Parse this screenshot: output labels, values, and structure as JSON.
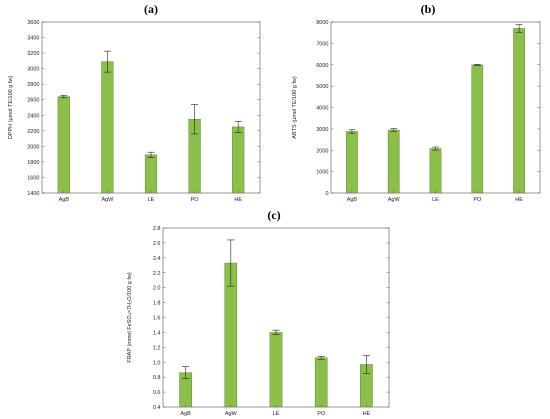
{
  "chart_data": [
    {
      "type": "bar",
      "panel_label": "(a)",
      "ylabel": "DPPH (µmol TE/100 g fw)",
      "categories": [
        "AgB",
        "AgW",
        "LE",
        "PO",
        "HE"
      ],
      "values": [
        2640,
        3090,
        1890,
        2350,
        2250
      ],
      "errors": [
        15,
        135,
        35,
        190,
        70
      ],
      "ylim": [
        1400,
        3600
      ],
      "yticks": [
        "1400",
        "1600",
        "1800",
        "2000",
        "2200",
        "2400",
        "2600",
        "2800",
        "3000",
        "3200",
        "3400",
        "3600"
      ],
      "grid": false
    },
    {
      "type": "bar",
      "panel_label": "(b)",
      "ylabel": "ABTS (µmol TE/100 g fw)",
      "categories": [
        "AgB",
        "AgW",
        "LE",
        "PO",
        "HE"
      ],
      "values": [
        2880,
        2950,
        2080,
        5990,
        7700
      ],
      "errors": [
        80,
        60,
        70,
        25,
        180
      ],
      "ylim": [
        0,
        8000
      ],
      "yticks": [
        "0",
        "1000",
        "2000",
        "3000",
        "4000",
        "5000",
        "6000",
        "7000",
        "8000"
      ],
      "grid": false
    },
    {
      "type": "bar",
      "panel_label": "(c)",
      "ylabel": "FRAP (mmol FeSO₄×7H₂O/100 g fw)",
      "categories": [
        "AgB",
        "AgW",
        "LE",
        "PO",
        "HE"
      ],
      "values": [
        0.86,
        2.33,
        1.4,
        1.06,
        0.97
      ],
      "errors": [
        0.08,
        0.31,
        0.03,
        0.02,
        0.12
      ],
      "ylim": [
        0.4,
        2.8
      ],
      "yticks": [
        "0.4",
        "0.6",
        "0.8",
        "1.0",
        "1.2",
        "1.4",
        "1.6",
        "1.8",
        "2.0",
        "2.2",
        "2.4",
        "2.6",
        "2.8"
      ],
      "grid": false
    }
  ],
  "colors": {
    "bar_fill": "#8cbf4a",
    "bar_edge": "#4a7a2a",
    "axis": "#555555",
    "text": "#222222"
  }
}
